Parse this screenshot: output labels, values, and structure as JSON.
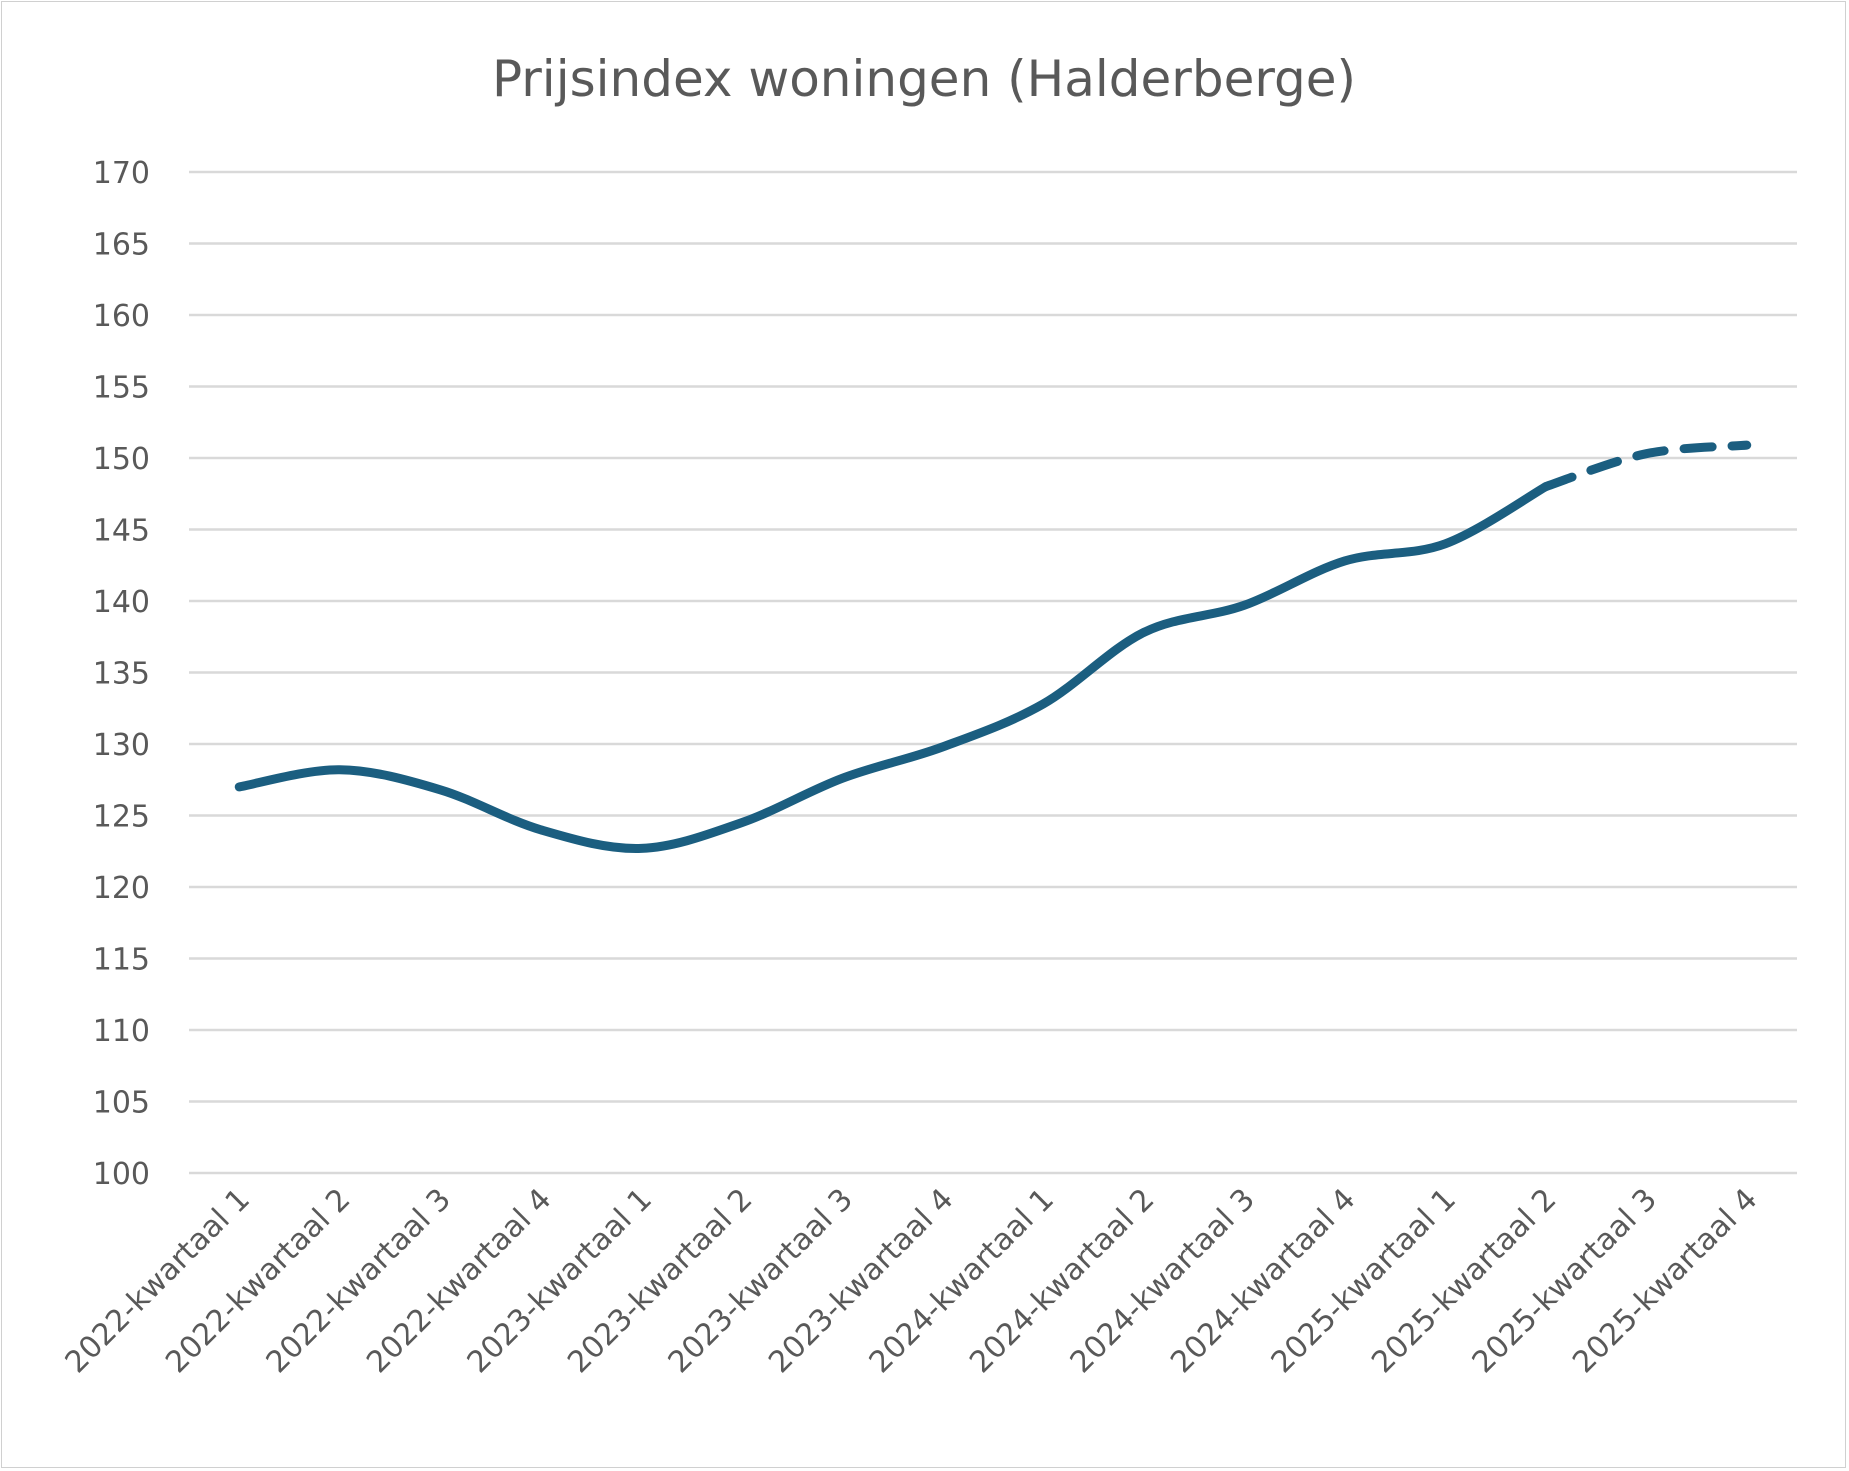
{
  "chart_data": {
    "type": "line",
    "title": "Prijsindex woningen (Halderberge)",
    "xlabel": "",
    "ylabel": "",
    "ylim": [
      100,
      170
    ],
    "yticks": [
      100,
      105,
      110,
      115,
      120,
      125,
      130,
      135,
      140,
      145,
      150,
      155,
      160,
      165,
      170
    ],
    "grid": true,
    "legend": "none",
    "categories": [
      "2022-kwartaal 1",
      "2022-kwartaal 2",
      "2022-kwartaal 3",
      "2022-kwartaal 4",
      "2023-kwartaal 1",
      "2023-kwartaal 2",
      "2023-kwartaal 3",
      "2023-kwartaal 4",
      "2024-kwartaal 1",
      "2024-kwartaal 2",
      "2024-kwartaal 3",
      "2024-kwartaal 4",
      "2025-kwartaal 1",
      "2025-kwartaal 2",
      "2025-kwartaal 3",
      "2025-kwartaal 4"
    ],
    "series": [
      {
        "values": [
          127.0,
          128.2,
          126.8,
          124.0,
          122.7,
          124.5,
          127.6,
          129.8,
          132.8,
          137.8,
          139.7,
          142.8,
          144.0,
          148.0,
          150.3,
          150.9
        ],
        "solid_through_index": 13,
        "color": "#1b5e80"
      }
    ]
  }
}
